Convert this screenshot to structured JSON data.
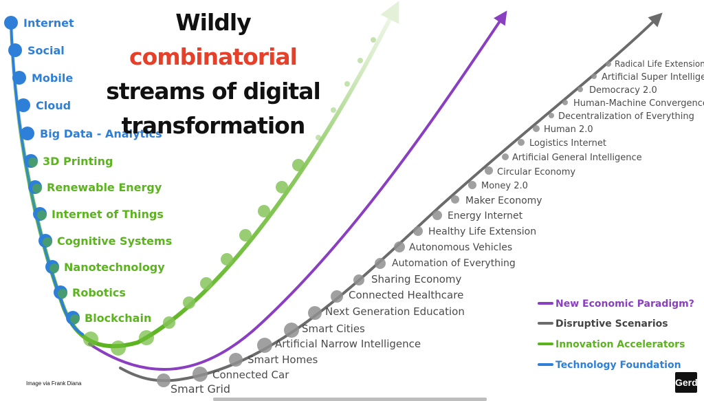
{
  "title": {
    "line1_pre": "Wildly ",
    "line1_accent": "combinatorial",
    "line2": "streams of digital",
    "line3": "transformation"
  },
  "credit": "Image via Frank Diana",
  "logo_text": "Gerd",
  "colors": {
    "foundation": "#2e7fd8",
    "innovation": "#5bb31e",
    "disruptive": "#6b6b6b",
    "paradigm": "#8a3fc0",
    "accent": "#e5402a"
  },
  "technology_foundation": [
    "Internet",
    "Social",
    "Mobile",
    "Cloud",
    "Big Data - Analytics"
  ],
  "innovation_accelerators": [
    "3D Printing",
    "Renewable Energy",
    "Internet of Things",
    "Cognitive Systems",
    "Nanotechnology",
    "Robotics",
    "Blockchain"
  ],
  "disruptive_scenarios": [
    "Smart Grid",
    "Connected Car",
    "Smart Homes",
    "Artificial Narrow Intelligence",
    "Smart Cities",
    "Next Generation Education",
    "Connected Healthcare",
    "Sharing Economy",
    "Automation of Everything",
    "Autonomous Vehicles",
    "Healthy Life Extension",
    "Energy Internet",
    "Maker Economy",
    "Money 2.0",
    "Circular Economy",
    "Artificial General Intelligence",
    "Logistics Internet",
    "Human 2.0",
    "Decentralization of Everything",
    "Human-Machine Convergence",
    "Democracy 2.0",
    "Artificial Super Intelligence",
    "Radical Life Extension"
  ],
  "legend": [
    {
      "label": "New Economic Paradigm?",
      "color": "#8a3fc0"
    },
    {
      "label": "Disruptive Scenarios",
      "color": "#6b6b6b"
    },
    {
      "label": "Innovation Accelerators",
      "color": "#5bb31e"
    },
    {
      "label": "Technology Foundation",
      "color": "#2e7fd8"
    }
  ]
}
